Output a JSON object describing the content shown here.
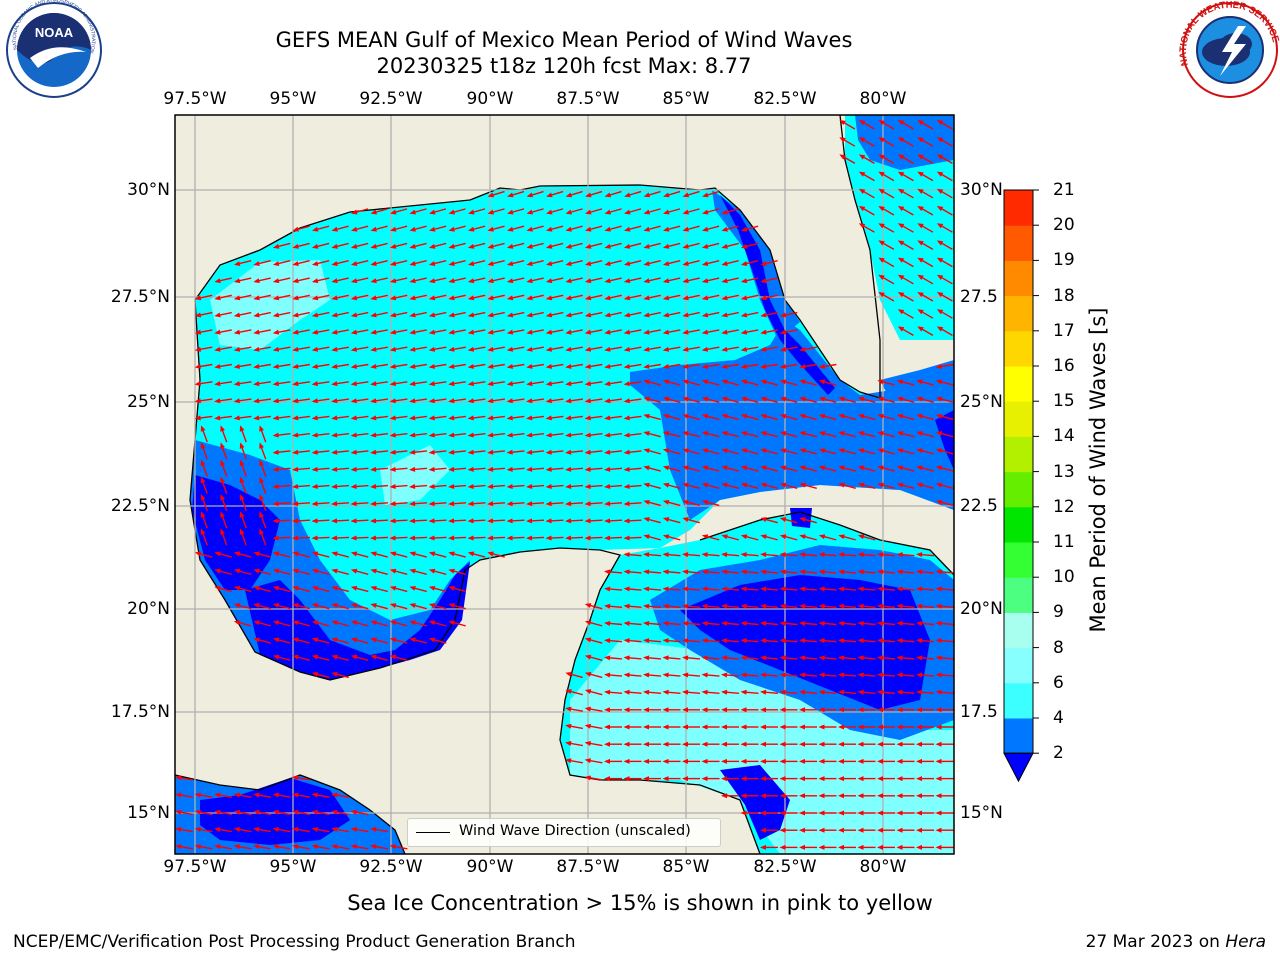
{
  "title": {
    "line1": "GEFS MEAN Gulf of Mexico Mean Period of Wind Waves",
    "line2": "20230325 t18z 120h fcst   Max: 8.77"
  },
  "map": {
    "lon_labels": [
      "97.5°W",
      "95°W",
      "92.5°W",
      "90°W",
      "87.5°W",
      "85°W",
      "82.5°W",
      "80°W"
    ],
    "lat_labels_left": [
      "30°N",
      "27.5°N",
      "25°N",
      "22.5°N",
      "20°N",
      "17.5°N",
      "15°N"
    ],
    "lat_labels_right": [
      "30°N",
      "27.5",
      "25°N",
      "22.5",
      "20°N",
      "17.5",
      "15°N"
    ],
    "lon_range": [
      -98,
      -78
    ],
    "lat_range": [
      14,
      31.5
    ],
    "land_color": "#efedde",
    "ocean_colors": {
      "deep": "#0000ff",
      "mid": "#0077ff",
      "light": "#00ffff",
      "pale": "#80ffff"
    },
    "arrow_color": "#ff0000",
    "legend_label": "Wind Wave Direction (unscaled)"
  },
  "colorbar": {
    "label": "Mean Period of Wind Waves [s]",
    "ticks": [
      "2",
      "4",
      "6",
      "8",
      "9",
      "10",
      "11",
      "12",
      "13",
      "14",
      "15",
      "16",
      "17",
      "18",
      "19",
      "20",
      "21"
    ],
    "colors": [
      "#0077ff",
      "#00ffff",
      "#3cffff",
      "#88ffff",
      "#a8ffef",
      "#4dff80",
      "#33ff33",
      "#00e600",
      "#66ee00",
      "#b2f000",
      "#e6f000",
      "#ffff00",
      "#ffd700",
      "#ffb400",
      "#ff8a00",
      "#ff5a00",
      "#ff2a00",
      "#ff0000"
    ],
    "under_color": "#0000ff"
  },
  "footer": {
    "ice_note": "Sea Ice Concentration > 15% is shown in pink to yellow",
    "credit": "NCEP/EMC/Verification Post Processing Product Generation Branch",
    "date": "27 Mar 2023 on",
    "machine": "Hera"
  },
  "logos": {
    "noaa": "NOAA",
    "noaa_ring": "NATIONAL OCEANIC AND ATMOSPHERIC ADMINISTRATION · U.S. DEPARTMENT OF COMMERCE",
    "nws_ring": "NATIONAL WEATHER SERVICE"
  }
}
